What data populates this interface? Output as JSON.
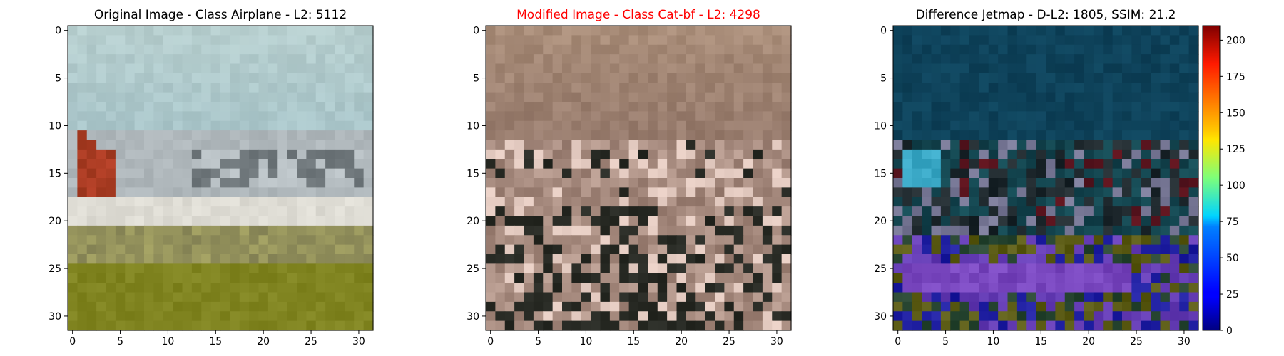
{
  "figure": {
    "panels": [
      {
        "title": "Original Image - Class Airplane - L2: 5112",
        "title_color": "#000000",
        "kind": "image",
        "palette": "original"
      },
      {
        "title": "Modified Image - Class Cat-bf - L2: 4298",
        "title_color": "#ff0000",
        "kind": "image",
        "palette": "modified"
      },
      {
        "title": "Difference Jetmap - D-L2: 1805, SSIM: 21.2",
        "title_color": "#000000",
        "kind": "image",
        "palette": "difference"
      }
    ],
    "colorbar": {
      "colormap": "jet",
      "min": 0,
      "max": 210,
      "ticks": [
        "0",
        "25",
        "50",
        "75",
        "100",
        "125",
        "150",
        "175",
        "200"
      ]
    }
  },
  "chart_data": [
    {
      "type": "heatmap",
      "title": "Original Image - Class Airplane - L2: 5112",
      "x_ticks": [
        "0",
        "5",
        "10",
        "15",
        "20",
        "25",
        "30"
      ],
      "y_ticks": [
        "0",
        "5",
        "10",
        "15",
        "20",
        "25",
        "30"
      ],
      "xlim": [
        -0.5,
        31.5
      ],
      "ylim": [
        31.5,
        -0.5
      ],
      "grid": false
    },
    {
      "type": "heatmap",
      "title": "Modified Image - Class Cat-bf - L2: 4298",
      "x_ticks": [
        "0",
        "5",
        "10",
        "15",
        "20",
        "25",
        "30"
      ],
      "y_ticks": [
        "0",
        "5",
        "10",
        "15",
        "20",
        "25",
        "30"
      ],
      "xlim": [
        -0.5,
        31.5
      ],
      "ylim": [
        31.5,
        -0.5
      ],
      "grid": false
    },
    {
      "type": "heatmap",
      "title": "Difference Jetmap - D-L2: 1805, SSIM: 21.2",
      "x_ticks": [
        "0",
        "5",
        "10",
        "15",
        "20",
        "25",
        "30"
      ],
      "y_ticks": [
        "0",
        "5",
        "10",
        "15",
        "20",
        "25",
        "30"
      ],
      "xlim": [
        -0.5,
        31.5
      ],
      "ylim": [
        31.5,
        -0.5
      ],
      "colorbar_range": [
        0,
        210
      ],
      "grid": false
    }
  ]
}
